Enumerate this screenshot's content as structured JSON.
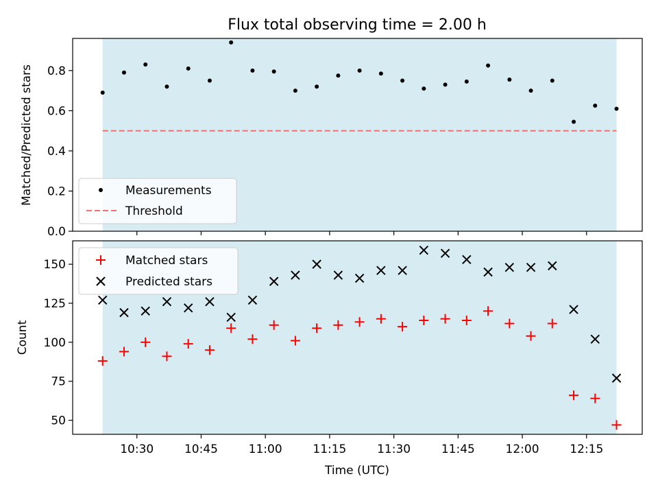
{
  "chart_data": [
    {
      "type": "scatter",
      "title": "Flux total observing time = 2.00 h",
      "xlabel": "",
      "ylabel": "Matched/Predicted stars",
      "ylim": [
        0,
        0.96
      ],
      "yticks": [
        0.0,
        0.2,
        0.4,
        0.6,
        0.8
      ],
      "ytick_labels": [
        "0.0",
        "0.2",
        "0.4",
        "0.6",
        "0.8"
      ],
      "x": [
        "10:22",
        "10:27",
        "10:32",
        "10:37",
        "10:42",
        "10:47",
        "10:52",
        "10:57",
        "11:02",
        "11:07",
        "11:12",
        "11:17",
        "11:22",
        "11:27",
        "11:32",
        "11:37",
        "11:42",
        "11:47",
        "11:52",
        "11:57",
        "12:02",
        "12:07",
        "12:12",
        "12:17",
        "12:22"
      ],
      "series": [
        {
          "name": "Measurements",
          "marker": "dot",
          "color": "#000000",
          "values": [
            0.69,
            0.79,
            0.83,
            0.72,
            0.81,
            0.75,
            0.94,
            0.8,
            0.795,
            0.7,
            0.72,
            0.775,
            0.8,
            0.785,
            0.75,
            0.71,
            0.73,
            0.745,
            0.825,
            0.755,
            0.7,
            0.75,
            0.545,
            0.625,
            0.61
          ]
        }
      ],
      "threshold": {
        "name": "Threshold",
        "value": 0.5,
        "color": "#f07070"
      },
      "shaded_range": [
        "10:22",
        "12:22"
      ],
      "shade_color": "#add8e6",
      "legend": "lower-left",
      "grid": false
    },
    {
      "type": "scatter",
      "title": "",
      "xlabel": "Time (UTC)",
      "ylabel": "Count",
      "ylim": [
        41,
        165
      ],
      "yticks": [
        50,
        75,
        100,
        125,
        150
      ],
      "ytick_labels": [
        "50",
        "75",
        "100",
        "125",
        "150"
      ],
      "xlim": [
        "10:15",
        "12:28"
      ],
      "xticks": [
        "10:30",
        "10:45",
        "11:00",
        "11:15",
        "11:30",
        "11:45",
        "12:00",
        "12:15"
      ],
      "x": [
        "10:22",
        "10:27",
        "10:32",
        "10:37",
        "10:42",
        "10:47",
        "10:52",
        "10:57",
        "11:02",
        "11:07",
        "11:12",
        "11:17",
        "11:22",
        "11:27",
        "11:32",
        "11:37",
        "11:42",
        "11:47",
        "11:52",
        "11:57",
        "12:02",
        "12:07",
        "12:12",
        "12:17",
        "12:22"
      ],
      "series": [
        {
          "name": "Matched stars",
          "marker": "plus",
          "color": "#ff0000",
          "values": [
            88,
            94,
            100,
            91,
            99,
            95,
            109,
            102,
            111,
            101,
            109,
            111,
            113,
            115,
            110,
            114,
            115,
            114,
            120,
            112,
            104,
            112,
            66,
            64,
            47
          ]
        },
        {
          "name": "Predicted stars",
          "marker": "x",
          "color": "#000000",
          "values": [
            127,
            119,
            120,
            126,
            122,
            126,
            116,
            127,
            139,
            143,
            150,
            143,
            141,
            146,
            146,
            159,
            157,
            153,
            145,
            148,
            148,
            149,
            121,
            102,
            77
          ]
        }
      ],
      "shaded_range": [
        "10:22",
        "12:22"
      ],
      "shade_color": "#add8e6",
      "legend": "upper-left",
      "grid": false
    }
  ]
}
